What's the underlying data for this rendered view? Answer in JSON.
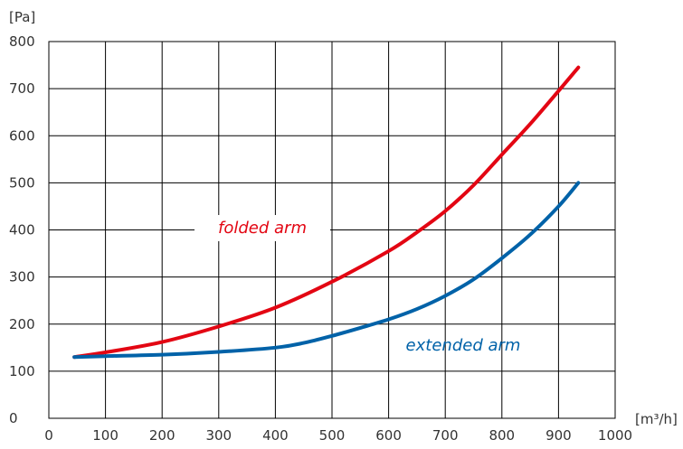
{
  "chart_data": {
    "type": "line",
    "title": "",
    "xlabel": "",
    "ylabel": "",
    "x_unit": "[m³/h]",
    "y_unit": "[Pa]",
    "xlim": [
      0,
      1000
    ],
    "ylim": [
      0,
      800
    ],
    "x_ticks": [
      "0",
      "100",
      "200",
      "300",
      "400",
      "500",
      "600",
      "700",
      "800",
      "900",
      "1000"
    ],
    "y_ticks": [
      "0",
      "100",
      "200",
      "300",
      "400",
      "500",
      "600",
      "700",
      "800"
    ],
    "grid": true,
    "series": [
      {
        "name": "folded arm",
        "color": "#e30613",
        "x": [
          45,
          100,
          200,
          300,
          400,
          500,
          600,
          650,
          700,
          750,
          800,
          850,
          900,
          935
        ],
        "y": [
          130,
          140,
          162,
          195,
          235,
          290,
          355,
          395,
          440,
          495,
          560,
          625,
          695,
          745
        ]
      },
      {
        "name": "extended arm",
        "color": "#0062a8",
        "x": [
          45,
          100,
          200,
          300,
          400,
          450,
          500,
          550,
          600,
          650,
          700,
          750,
          800,
          850,
          900,
          935
        ],
        "y": [
          130,
          132,
          135,
          141,
          150,
          160,
          175,
          192,
          210,
          232,
          260,
          295,
          340,
          390,
          450,
          500
        ]
      }
    ]
  }
}
